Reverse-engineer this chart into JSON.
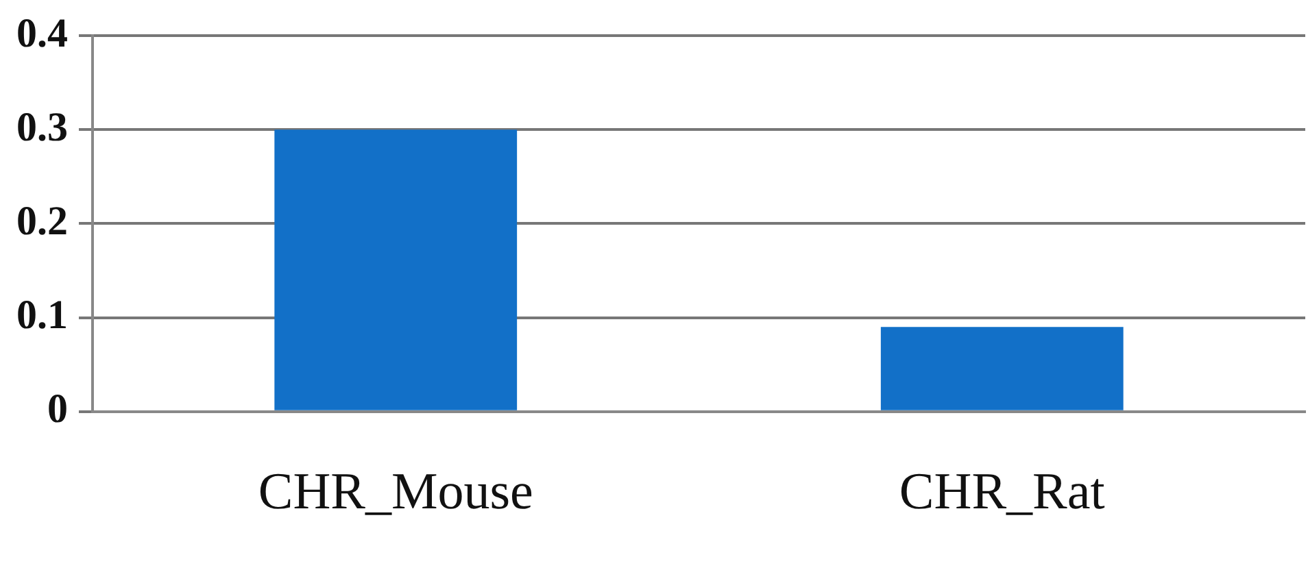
{
  "chart_data": {
    "type": "bar",
    "categories": [
      "CHR_Mouse",
      "CHR_Rat"
    ],
    "values": [
      0.3,
      0.09
    ],
    "color": "#1270c8",
    "ylim": [
      0,
      0.4
    ],
    "yticks": [
      0,
      0.1,
      0.2,
      0.3,
      0.4
    ],
    "grid": "y",
    "legend": false
  }
}
